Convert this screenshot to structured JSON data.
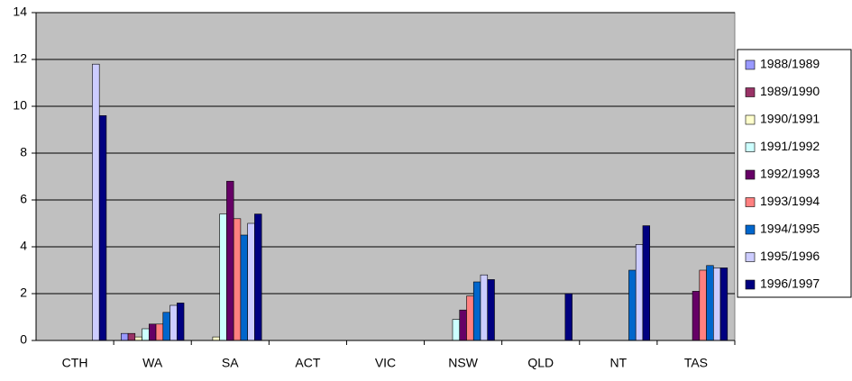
{
  "chart_data": {
    "type": "bar",
    "categories": [
      "CTH",
      "WA",
      "SA",
      "ACT",
      "VIC",
      "NSW",
      "QLD",
      "NT",
      "TAS"
    ],
    "series": [
      {
        "name": "1988/1989",
        "color": "#9999ff",
        "values": [
          null,
          0.3,
          null,
          null,
          null,
          null,
          null,
          null,
          null
        ]
      },
      {
        "name": "1989/1990",
        "color": "#993366",
        "values": [
          null,
          0.3,
          null,
          null,
          null,
          null,
          null,
          null,
          null
        ]
      },
      {
        "name": "1990/1991",
        "color": "#ffffcc",
        "values": [
          null,
          0.15,
          0.15,
          null,
          null,
          null,
          null,
          null,
          null
        ]
      },
      {
        "name": "1991/1992",
        "color": "#ccffff",
        "values": [
          null,
          0.5,
          5.4,
          null,
          null,
          0.9,
          null,
          null,
          null
        ]
      },
      {
        "name": "1992/1993",
        "color": "#660066",
        "values": [
          null,
          0.7,
          6.8,
          null,
          null,
          1.3,
          null,
          null,
          2.1
        ]
      },
      {
        "name": "1993/1994",
        "color": "#ff8080",
        "values": [
          null,
          0.7,
          5.2,
          null,
          null,
          1.9,
          null,
          null,
          3.0
        ]
      },
      {
        "name": "1994/1995",
        "color": "#0066cc",
        "values": [
          null,
          1.2,
          4.5,
          null,
          null,
          2.5,
          null,
          3.0,
          3.2
        ]
      },
      {
        "name": "1995/1996",
        "color": "#ccccff",
        "values": [
          11.8,
          1.5,
          5.0,
          null,
          null,
          2.8,
          null,
          4.1,
          3.1
        ]
      },
      {
        "name": "1996/1997",
        "color": "#000080",
        "values": [
          9.6,
          1.6,
          5.4,
          null,
          null,
          2.6,
          2.0,
          4.9,
          3.1
        ]
      }
    ],
    "ylim": [
      0,
      14
    ],
    "yticks": [
      0,
      2,
      4,
      6,
      8,
      10,
      12,
      14
    ],
    "grid": true
  }
}
